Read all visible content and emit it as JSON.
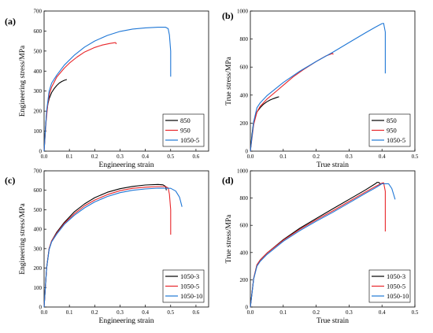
{
  "chart_data": [
    {
      "panel_label": "(a)",
      "type": "line",
      "xlabel": "Engineering strain",
      "ylabel": "Engineering stress/MPa",
      "xlim": [
        0,
        0.65
      ],
      "ylim": [
        0,
        700
      ],
      "xticks": [
        "0.0",
        "0.1",
        "0.2",
        "0.3",
        "0.4",
        "0.5",
        "0.6"
      ],
      "yticks": [
        "0",
        "100",
        "200",
        "300",
        "400",
        "500",
        "600",
        "700"
      ],
      "legend": "bottom-right",
      "series": [
        {
          "name": "850",
          "color": "#000000",
          "x": [
            0,
            0.005,
            0.01,
            0.015,
            0.02,
            0.03,
            0.04,
            0.05,
            0.06,
            0.07,
            0.08,
            0.09
          ],
          "y": [
            0,
            110,
            190,
            235,
            262,
            293,
            313,
            328,
            340,
            348,
            354,
            358
          ]
        },
        {
          "name": "950",
          "color": "#e8262a",
          "x": [
            0,
            0.008,
            0.015,
            0.022,
            0.03,
            0.05,
            0.08,
            0.1,
            0.13,
            0.16,
            0.2,
            0.23,
            0.26,
            0.28,
            0.283,
            0.285
          ],
          "y": [
            0,
            150,
            240,
            290,
            320,
            370,
            415,
            440,
            470,
            495,
            518,
            530,
            538,
            542,
            542,
            535
          ]
        },
        {
          "name": "1050-5",
          "color": "#1f77d6",
          "x": [
            0,
            0.01,
            0.02,
            0.03,
            0.05,
            0.08,
            0.12,
            0.16,
            0.2,
            0.25,
            0.3,
            0.35,
            0.4,
            0.45,
            0.48,
            0.49,
            0.495,
            0.5,
            0.5
          ],
          "y": [
            0,
            200,
            300,
            340,
            380,
            430,
            480,
            520,
            550,
            578,
            598,
            610,
            616,
            619,
            619,
            612,
            580,
            500,
            372
          ]
        }
      ]
    },
    {
      "panel_label": "(b)",
      "type": "line",
      "xlabel": "True strain",
      "ylabel": "True stress/MPa",
      "xlim": [
        0,
        0.5
      ],
      "ylim": [
        0,
        1000
      ],
      "xticks": [
        "0.0",
        "0.1",
        "0.2",
        "0.3",
        "0.4",
        "0.5"
      ],
      "yticks": [
        "0",
        "200",
        "400",
        "600",
        "800",
        "1000"
      ],
      "legend": "bottom-right",
      "series": [
        {
          "name": "850",
          "color": "#000000",
          "x": [
            0,
            0.005,
            0.01,
            0.02,
            0.03,
            0.04,
            0.05,
            0.06,
            0.07,
            0.08,
            0.087
          ],
          "y": [
            0,
            120,
            210,
            280,
            310,
            335,
            352,
            365,
            375,
            383,
            388
          ]
        },
        {
          "name": "950",
          "color": "#e8262a",
          "x": [
            0,
            0.01,
            0.02,
            0.03,
            0.05,
            0.08,
            0.1,
            0.13,
            0.16,
            0.2,
            0.23,
            0.25,
            0.252
          ],
          "y": [
            0,
            190,
            280,
            320,
            370,
            430,
            470,
            530,
            580,
            640,
            680,
            698,
            690
          ]
        },
        {
          "name": "1050-5",
          "color": "#1f77d6",
          "x": [
            0,
            0.01,
            0.02,
            0.03,
            0.05,
            0.1,
            0.15,
            0.2,
            0.25,
            0.3,
            0.35,
            0.38,
            0.4,
            0.405,
            0.41,
            0.41
          ],
          "y": [
            0,
            210,
            310,
            345,
            395,
            490,
            570,
            640,
            705,
            775,
            845,
            885,
            910,
            912,
            850,
            555
          ]
        }
      ]
    },
    {
      "panel_label": "(c)",
      "type": "line",
      "xlabel": "Engineering strain",
      "ylabel": "Engineering stress/MPa",
      "xlim": [
        0,
        0.65
      ],
      "ylim": [
        0,
        700
      ],
      "xticks": [
        "0.0",
        "0.1",
        "0.2",
        "0.3",
        "0.4",
        "0.5",
        "0.6"
      ],
      "yticks": [
        "0",
        "100",
        "200",
        "300",
        "400",
        "500",
        "600",
        "700"
      ],
      "legend": "bottom-right",
      "series": [
        {
          "name": "1050-3",
          "color": "#000000",
          "x": [
            0,
            0.01,
            0.02,
            0.03,
            0.05,
            0.08,
            0.12,
            0.16,
            0.2,
            0.25,
            0.3,
            0.35,
            0.4,
            0.45,
            0.47,
            0.48,
            0.483
          ],
          "y": [
            0,
            200,
            300,
            340,
            385,
            435,
            490,
            530,
            562,
            590,
            608,
            620,
            627,
            630,
            628,
            620,
            600
          ]
        },
        {
          "name": "1050-5",
          "color": "#e8262a",
          "x": [
            0,
            0.01,
            0.02,
            0.03,
            0.05,
            0.08,
            0.12,
            0.16,
            0.2,
            0.25,
            0.3,
            0.35,
            0.4,
            0.45,
            0.48,
            0.49,
            0.495,
            0.5,
            0.5
          ],
          "y": [
            0,
            200,
            300,
            340,
            380,
            430,
            480,
            520,
            550,
            578,
            598,
            610,
            616,
            619,
            619,
            612,
            580,
            500,
            372
          ]
        },
        {
          "name": "1050-10",
          "color": "#1f77d6",
          "x": [
            0,
            0.01,
            0.02,
            0.03,
            0.05,
            0.08,
            0.12,
            0.16,
            0.2,
            0.25,
            0.3,
            0.35,
            0.4,
            0.45,
            0.5,
            0.52,
            0.535,
            0.545
          ],
          "y": [
            0,
            200,
            295,
            335,
            375,
            425,
            472,
            510,
            540,
            568,
            588,
            600,
            607,
            611,
            610,
            596,
            565,
            515
          ]
        }
      ]
    },
    {
      "panel_label": "(d)",
      "type": "line",
      "xlabel": "True strain",
      "ylabel": "True stress/MPa",
      "xlim": [
        0,
        0.5
      ],
      "ylim": [
        0,
        1000
      ],
      "xticks": [
        "0.0",
        "0.1",
        "0.2",
        "0.3",
        "0.4",
        "0.5"
      ],
      "yticks": [
        "0",
        "200",
        "400",
        "600",
        "800",
        "1000"
      ],
      "legend": "bottom-right",
      "series": [
        {
          "name": "1050-3",
          "color": "#000000",
          "x": [
            0,
            0.01,
            0.02,
            0.03,
            0.05,
            0.1,
            0.15,
            0.2,
            0.25,
            0.3,
            0.35,
            0.38,
            0.385,
            0.39,
            0.395
          ],
          "y": [
            0,
            210,
            310,
            345,
            395,
            495,
            578,
            650,
            720,
            790,
            860,
            905,
            915,
            915,
            905
          ]
        },
        {
          "name": "1050-5",
          "color": "#e8262a",
          "x": [
            0,
            0.01,
            0.02,
            0.03,
            0.05,
            0.1,
            0.15,
            0.2,
            0.25,
            0.3,
            0.35,
            0.38,
            0.4,
            0.405,
            0.41,
            0.41
          ],
          "y": [
            0,
            210,
            310,
            345,
            395,
            490,
            570,
            640,
            705,
            775,
            845,
            885,
            910,
            912,
            850,
            555
          ]
        },
        {
          "name": "1050-10",
          "color": "#1f77d6",
          "x": [
            0,
            0.01,
            0.02,
            0.03,
            0.05,
            0.1,
            0.15,
            0.2,
            0.25,
            0.3,
            0.35,
            0.38,
            0.4,
            0.42,
            0.43,
            0.44
          ],
          "y": [
            0,
            205,
            300,
            335,
            385,
            482,
            560,
            630,
            695,
            765,
            835,
            875,
            905,
            905,
            870,
            790
          ]
        }
      ]
    }
  ]
}
